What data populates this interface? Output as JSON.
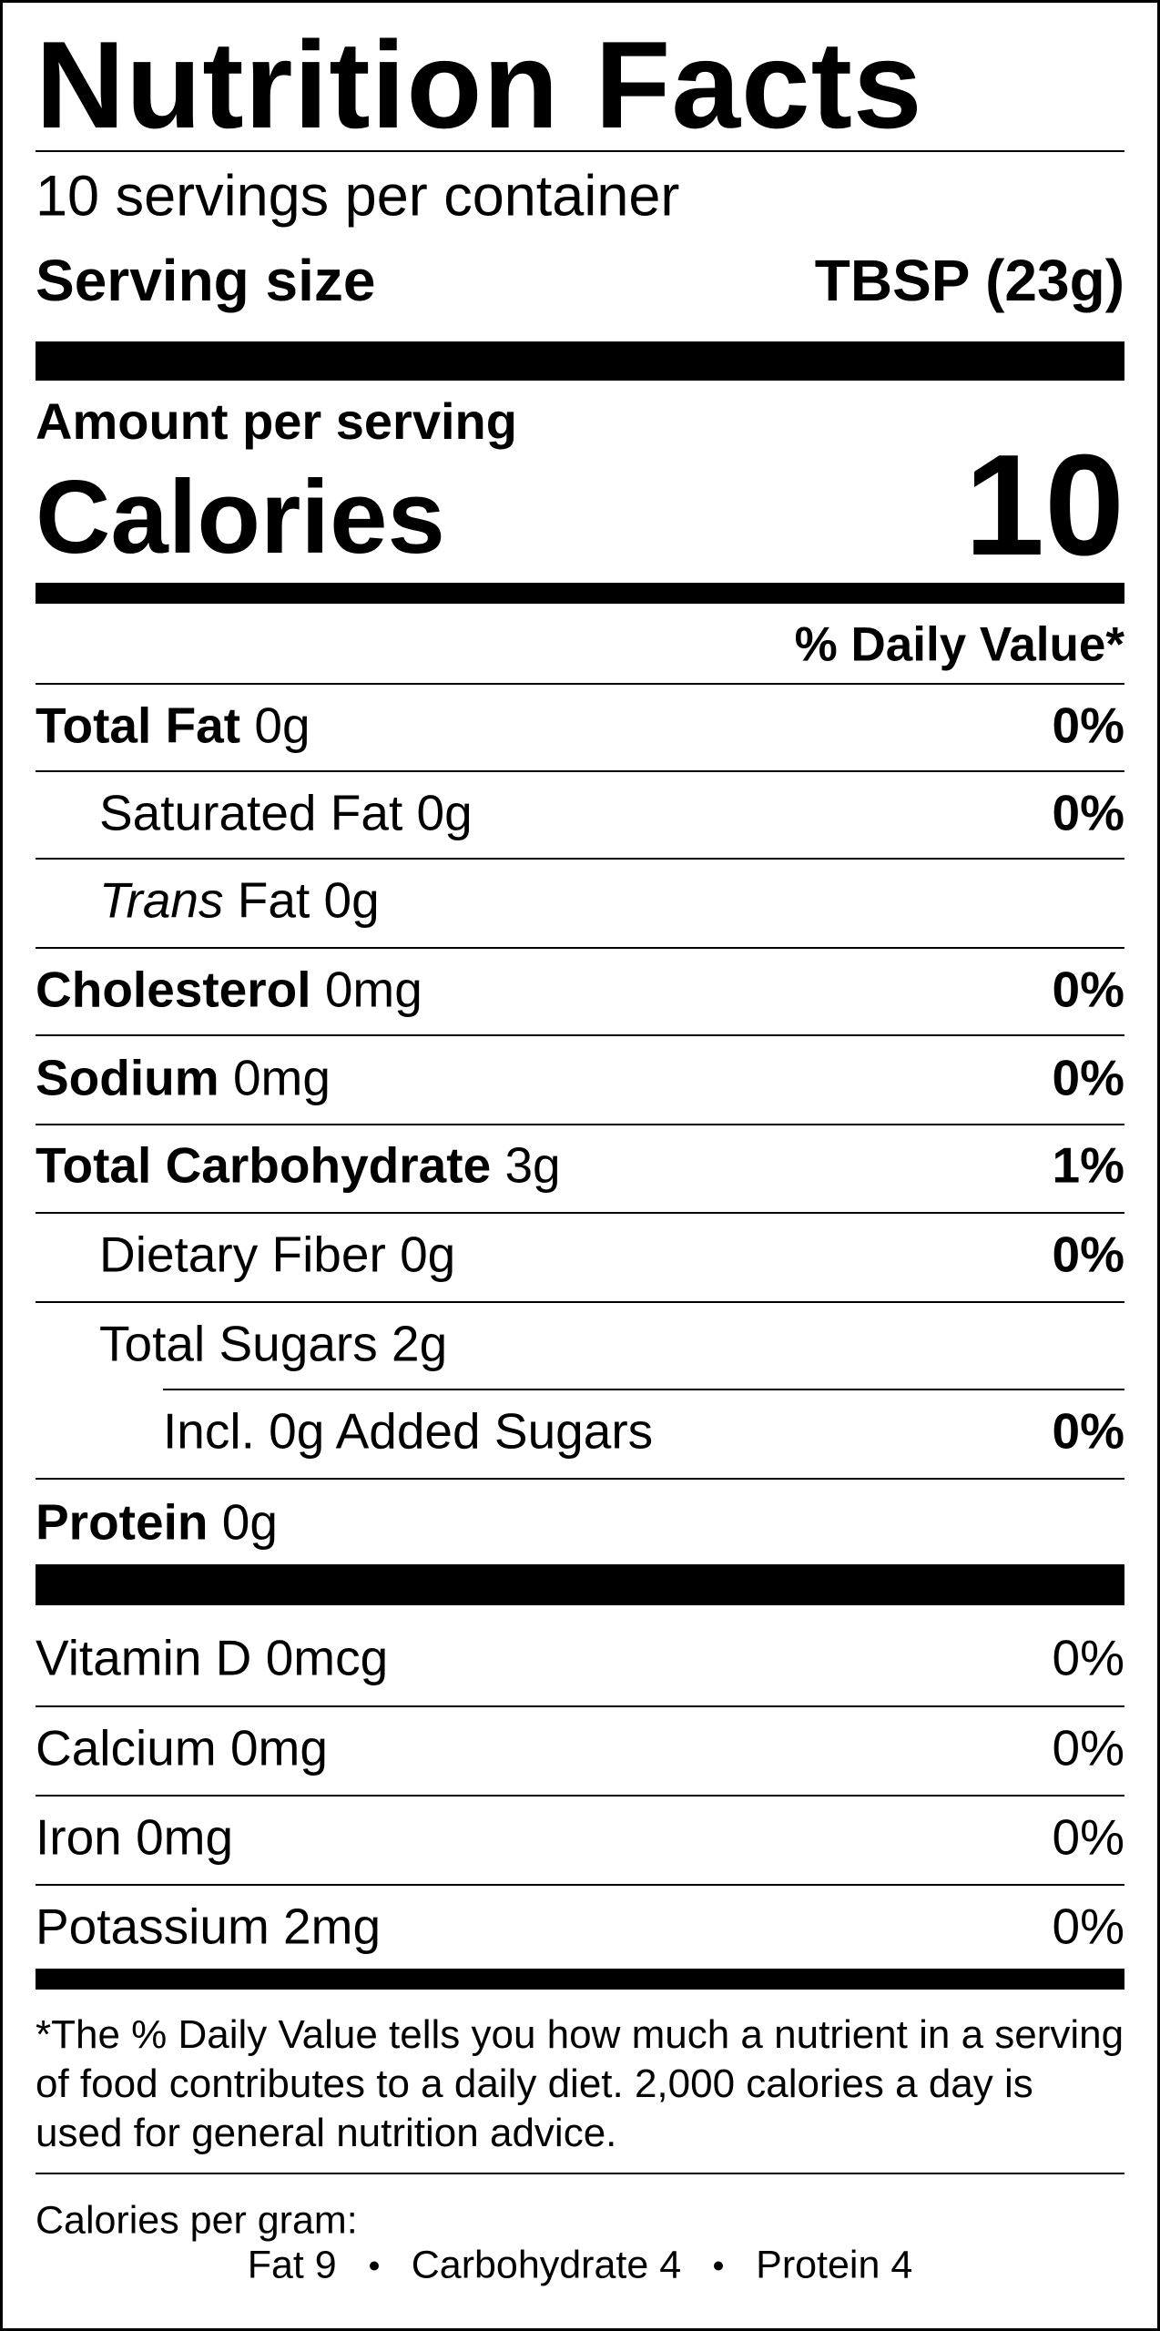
{
  "header": {
    "title": "Nutrition Facts",
    "servings": "10 servings per container",
    "serving_size_label": "Serving size",
    "serving_size_value": "TBSP (23g)"
  },
  "calories": {
    "amount_label": "Amount per serving",
    "label": "Calories",
    "value": "10"
  },
  "daily_value_header": "% Daily Value*",
  "nutrients": [
    {
      "name": "Total Fat",
      "amount": "0g",
      "dv": "0%"
    },
    {
      "name": "Saturated Fat",
      "amount": "0g",
      "dv": "0%"
    },
    {
      "name": "Trans",
      "name_rest": "Fat",
      "amount": "0g"
    },
    {
      "name": "Cholesterol",
      "amount": "0mg",
      "dv": "0%"
    },
    {
      "name": "Sodium",
      "amount": "0mg",
      "dv": "0%"
    },
    {
      "name": "Total Carbohydrate",
      "amount": "3g",
      "dv": "1%"
    },
    {
      "name": "Dietary Fiber",
      "amount": "0g",
      "dv": "0%"
    },
    {
      "name": "Total Sugars",
      "amount": "2g"
    },
    {
      "name": "Incl. 0g Added Sugars",
      "dv": "0%"
    },
    {
      "name": "Protein",
      "amount": "0g"
    }
  ],
  "vitamins": [
    {
      "name": "Vitamin D",
      "amount": "0mcg",
      "dv": "0%"
    },
    {
      "name": "Calcium",
      "amount": "0mg",
      "dv": "0%"
    },
    {
      "name": "Iron",
      "amount": "0mg",
      "dv": "0%"
    },
    {
      "name": "Potassium",
      "amount": "2mg",
      "dv": "0%"
    }
  ],
  "footnote": "*The % Daily Value tells you how much a nutrient in a serving of food contributes to a daily diet. 2,000 calories a day is used for general nutrition advice.",
  "calories_per_gram": {
    "label": "Calories per gram:",
    "items": [
      "Fat 9",
      "Carbohydrate 4",
      "Protein 4"
    ]
  }
}
